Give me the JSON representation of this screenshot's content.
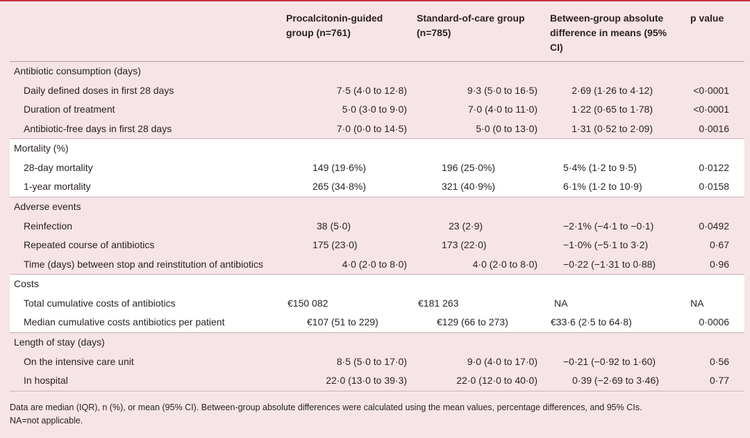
{
  "header": {
    "col1": "Procalcitonin-guided group (n=761)",
    "col2": "Standard-of-care group (n=785)",
    "col3": "Between-group absolute difference in means (95% CI)",
    "col4": "p value"
  },
  "sections": [
    {
      "title": "Antibiotic consumption (days)",
      "rows": [
        {
          "label": "Daily defined doses in first 28 days",
          "g1": "7·5 (4·0 to 12·8)",
          "g2": "9·3 (5·0 to 16·5)",
          "diff": "2·69 (1·26 to 4·12)",
          "p": "<0·0001"
        },
        {
          "label": "Duration of treatment",
          "g1": "5·0 (3·0 to 9·0)",
          "g2": "7·0 (4·0 to 11·0)",
          "diff": "1·22 (0·65 to 1·78)",
          "p": "<0·0001"
        },
        {
          "label": "Antibiotic-free days in first 28 days",
          "g1": "7·0 (0·0 to 14·5)",
          "g2": "5·0 (0 to 13·0)",
          "diff": "1·31 (0·52 to 2·09)",
          "p": "0·0016"
        }
      ]
    },
    {
      "title": "Mortality (%)",
      "rows": [
        {
          "label": "28-day mortality",
          "g1": "149 (19·6%)",
          "g2": "196 (25·0%)",
          "diff": "5·4% (1·2 to 9·5)",
          "p": "0·0122"
        },
        {
          "label": "1-year mortality",
          "g1": "265 (34·8%)",
          "g2": "321 (40·9%)",
          "diff": "6·1% (1·2 to 10·9)",
          "p": "0·0158"
        }
      ]
    },
    {
      "title": "Adverse events",
      "rows": [
        {
          "label": "Reinfection",
          "g1": "38 (5·0)",
          "g2": "23 (2·9)",
          "diff": "−2·1% (−4·1 to −0·1)",
          "p": "0·0492"
        },
        {
          "label": "Repeated course of antibiotics",
          "g1": "175 (23·0)",
          "g2": "173 (22·0)",
          "diff": "−1·0% (−5·1 to 3·2)",
          "p": "0·67"
        },
        {
          "label": "Time (days) between stop and reinstitution of antibiotics",
          "g1": "4·0 (2·0 to 8·0)",
          "g2": "4·0 (2·0 to 8·0)",
          "diff": "−0·22 (−1·31 to 0·88)",
          "p": "0·96"
        }
      ]
    },
    {
      "title": "Costs",
      "rows": [
        {
          "label": "Total cumulative costs of antibiotics",
          "g1": "€150 082",
          "g2": "€181 263",
          "diff": "NA",
          "p": "NA"
        },
        {
          "label": "Median cumulative costs antibiotics per patient",
          "g1": "€107 (51 to 229)",
          "g2": "€129 (66 to 273)",
          "diff": "€33·6 (2·5 to 64·8)",
          "p": "0·0006"
        }
      ]
    },
    {
      "title": "Length of stay (days)",
      "rows": [
        {
          "label": "On the intensive care unit",
          "g1": "8·5 (5·0 to 17·0)",
          "g2": "9·0 (4·0 to 17·0)",
          "diff": "−0·21 (−0·92 to 1·60)",
          "p": "0·56"
        },
        {
          "label": "In hospital",
          "g1": "22·0 (13·0 to 39·3)",
          "g2": "22·0 (12·0 to 40·0)",
          "diff": "0·39 (−2·69 to 3·46)",
          "p": "0·77"
        }
      ]
    }
  ],
  "footnote": {
    "line1": "Data are median (IQR), n (%), or mean (95% CI). Between-group absolute differences were calculated using the mean values, percentage differences, and 95% CIs.",
    "line2": "NA=not applicable."
  }
}
